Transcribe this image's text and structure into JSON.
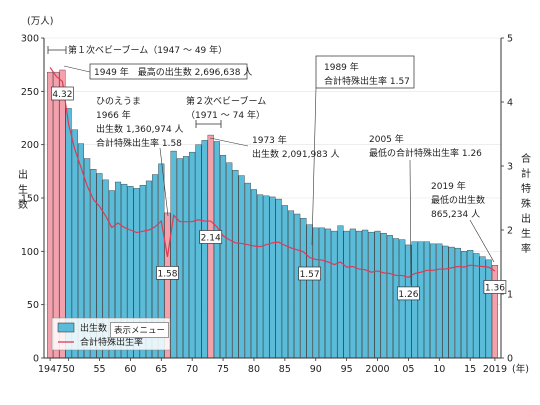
{
  "tooltip": "表示メニュー",
  "chart_data": {
    "type": "bar",
    "ylabel_unit": "(万人)",
    "ylabel": "出生数",
    "y2label": "合計特殊出生率",
    "xunit": "(年)",
    "ylim": [
      0,
      300
    ],
    "y2lim": [
      0,
      5
    ],
    "y_ticks": [
      0,
      50,
      100,
      150,
      200,
      250,
      300
    ],
    "y2_ticks": [
      0,
      1,
      2,
      3,
      4,
      5
    ],
    "x_tick_labels": [
      {
        "year": 1947,
        "label": "1947"
      },
      {
        "year": 1950,
        "label": "50"
      },
      {
        "year": 1955,
        "label": "55"
      },
      {
        "year": 1960,
        "label": "60"
      },
      {
        "year": 1965,
        "label": "65"
      },
      {
        "year": 1970,
        "label": "70"
      },
      {
        "year": 1975,
        "label": "75"
      },
      {
        "year": 1980,
        "label": "80"
      },
      {
        "year": 1985,
        "label": "85"
      },
      {
        "year": 1990,
        "label": "90"
      },
      {
        "year": 1995,
        "label": "95"
      },
      {
        "year": 2000,
        "label": "2000"
      },
      {
        "year": 2005,
        "label": "05"
      },
      {
        "year": 2010,
        "label": "10"
      },
      {
        "year": 2015,
        "label": "15"
      },
      {
        "year": 2019,
        "label": "2019"
      }
    ],
    "legend": [
      "出生数",
      "合計特殊出生率"
    ],
    "colors": {
      "bar": "#5bbcd9",
      "bar_highlight": "#f3a2ad",
      "line": "#e03a53",
      "axis": "#333333"
    },
    "x": [
      1947,
      1948,
      1949,
      1950,
      1951,
      1952,
      1953,
      1954,
      1955,
      1956,
      1957,
      1958,
      1959,
      1960,
      1961,
      1962,
      1963,
      1964,
      1965,
      1966,
      1967,
      1968,
      1969,
      1970,
      1971,
      1972,
      1973,
      1974,
      1975,
      1976,
      1977,
      1978,
      1979,
      1980,
      1981,
      1982,
      1983,
      1984,
      1985,
      1986,
      1987,
      1988,
      1989,
      1990,
      1991,
      1992,
      1993,
      1994,
      1995,
      1996,
      1997,
      1998,
      1999,
      2000,
      2001,
      2002,
      2003,
      2004,
      2005,
      2006,
      2007,
      2008,
      2009,
      2010,
      2011,
      2012,
      2013,
      2014,
      2015,
      2016,
      2017,
      2018,
      2019
    ],
    "births_10k": [
      268,
      268,
      270,
      234,
      214,
      201,
      187,
      177,
      173,
      167,
      157,
      165,
      163,
      161,
      159,
      162,
      166,
      172,
      182,
      136,
      194,
      187,
      189,
      193,
      200,
      204,
      209,
      203,
      190,
      183,
      176,
      171,
      164,
      158,
      153,
      152,
      151,
      149,
      143,
      138,
      135,
      131,
      125,
      122,
      122,
      121,
      119,
      124,
      119,
      121,
      119,
      120,
      118,
      119,
      117,
      115,
      112,
      111,
      106,
      109,
      109,
      109,
      107,
      107,
      105,
      104,
      103,
      100,
      101,
      98,
      95,
      92,
      87
    ],
    "highlight_years": [
      1947,
      1948,
      1949,
      1966,
      1973,
      2019
    ],
    "tfr": [
      4.54,
      4.4,
      4.32,
      3.65,
      3.26,
      2.98,
      2.69,
      2.48,
      2.37,
      2.22,
      2.04,
      2.11,
      2.04,
      2.0,
      1.96,
      1.98,
      2.0,
      2.05,
      2.14,
      1.58,
      2.23,
      2.13,
      2.13,
      2.13,
      2.16,
      2.14,
      2.14,
      2.05,
      1.91,
      1.85,
      1.8,
      1.79,
      1.77,
      1.75,
      1.74,
      1.77,
      1.8,
      1.81,
      1.76,
      1.72,
      1.69,
      1.66,
      1.57,
      1.54,
      1.53,
      1.5,
      1.46,
      1.5,
      1.42,
      1.43,
      1.39,
      1.38,
      1.34,
      1.36,
      1.33,
      1.32,
      1.29,
      1.29,
      1.26,
      1.32,
      1.34,
      1.37,
      1.37,
      1.39,
      1.39,
      1.41,
      1.43,
      1.42,
      1.45,
      1.44,
      1.43,
      1.42,
      1.36
    ],
    "tfr_labels": [
      {
        "year": 1949,
        "value": "4.32"
      },
      {
        "year": 1966,
        "value": "1.58"
      },
      {
        "year": 1973,
        "value": "2.14"
      },
      {
        "year": 1989,
        "value": "1.57"
      },
      {
        "year": 2005,
        "value": "1.26"
      },
      {
        "year": 2019,
        "value": "1.36"
      }
    ],
    "annotations": {
      "boom1": "第１次ベビーブーム（1947 ～ 49 年）",
      "max1949": "1949 年　最高の出生数 2,696,638 人",
      "hinoe_1": "ひのえうま",
      "hinoe_2": "1966 年",
      "hinoe_3": "出生数 1,360,974 人",
      "hinoe_4": "合計特殊出生率 1.58",
      "boom2_1": "第２次ベビーブーム",
      "boom2_2": "（1971 ～ 74 年）",
      "y1973_1": "1973 年",
      "y1973_2": "出生数 2,091,983 人",
      "y1989_1": "1989 年",
      "y1989_2": "合計特殊出生率 1.57",
      "y2005_1": "2005 年",
      "y2005_2": "最低の合計特殊出生率 1.26",
      "y2019_1": "2019 年",
      "y2019_2": "最低の出生数",
      "y2019_3": "865,234 人"
    }
  }
}
